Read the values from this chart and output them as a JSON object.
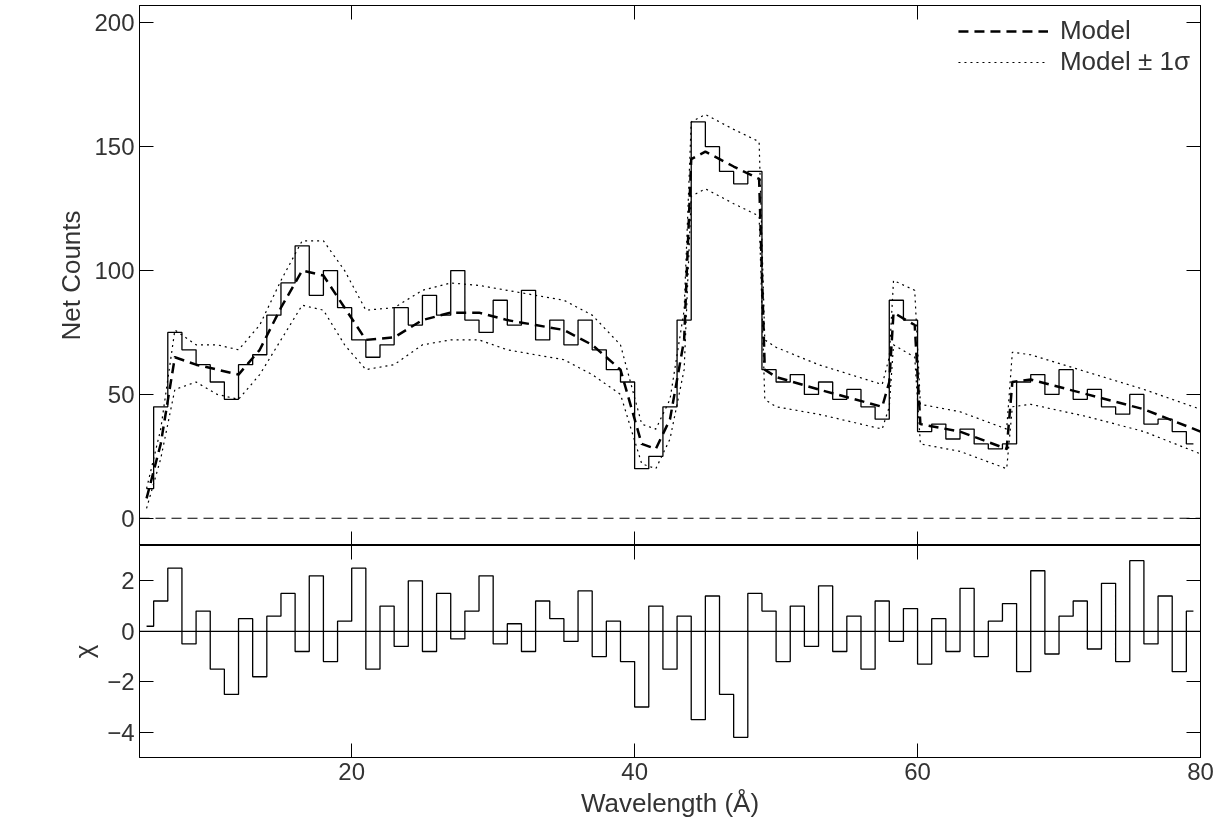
{
  "chart_data": [
    {
      "type": "step",
      "ylabel": "Net Counts",
      "xlim": [
        5,
        80
      ],
      "xticks": [
        20,
        40,
        60,
        80
      ],
      "ylim": [
        -11,
        207
      ],
      "yticks": [
        0,
        50,
        100,
        150,
        200
      ],
      "tick_labels": "y",
      "grid": false,
      "legend": "top right",
      "series": [
        {
          "color": "#000000",
          "x": [
            5.5,
            6.5,
            7.5,
            8.5,
            9.5,
            10.5,
            11.5,
            12.5,
            13.5,
            14.5,
            15.5,
            16.5,
            17.5,
            18.5,
            19.5,
            20.5,
            21.5,
            22.5,
            23.5,
            24.5,
            25.5,
            26.5,
            27.5,
            28.5,
            29.5,
            30.5,
            31.5,
            32.5,
            33.5,
            34.5,
            35.5,
            36.5,
            37.5,
            38.5,
            39.5,
            40.5,
            41.5,
            42.5,
            43.5,
            44.5,
            45.5,
            46.5,
            47.5,
            48.5,
            49.5,
            50.5,
            51.5,
            52.5,
            53.5,
            54.5,
            55.5,
            56.5,
            57.5,
            58.5,
            59.5,
            60.5,
            61.5,
            62.5,
            63.5,
            64.5,
            65.5,
            66.5,
            67.5,
            68.5,
            69.5,
            70.5,
            71.5,
            72.5,
            73.5,
            74.5,
            75.5,
            76.5,
            77.5,
            78.5,
            79.5
          ],
          "values": [
            12,
            45,
            75,
            68,
            62,
            55,
            48,
            62,
            66,
            82,
            95,
            110,
            90,
            100,
            85,
            72,
            65,
            70,
            85,
            78,
            90,
            82,
            100,
            80,
            75,
            88,
            78,
            92,
            72,
            80,
            70,
            80,
            68,
            60,
            55,
            20,
            25,
            45,
            80,
            160,
            150,
            140,
            135,
            140,
            60,
            55,
            58,
            50,
            55,
            48,
            52,
            45,
            40,
            88,
            80,
            35,
            38,
            32,
            36,
            30,
            28,
            30,
            55,
            58,
            50,
            60,
            48,
            52,
            45,
            42,
            50,
            38,
            40,
            35,
            30
          ]
        },
        {
          "type": "line",
          "name": "Model",
          "color": "#000000",
          "line_style": "dashed",
          "x": [
            5.5,
            6.5,
            7.5,
            9,
            10.5,
            12,
            13.5,
            15,
            16.5,
            18,
            19.5,
            21,
            23,
            25,
            27,
            29,
            31,
            33,
            35,
            37,
            39,
            40.5,
            41.5,
            42.5,
            43.5,
            44,
            45,
            47,
            48.8,
            49.2,
            50,
            53,
            57.5,
            58,
            58.3,
            59.8,
            60.2,
            63,
            66.3,
            66.7,
            68,
            72,
            76,
            80
          ],
          "values": [
            8,
            30,
            65,
            62,
            60,
            58,
            68,
            85,
            100,
            98,
            85,
            72,
            73,
            80,
            83,
            83,
            80,
            78,
            76,
            70,
            60,
            30,
            28,
            40,
            72,
            145,
            148,
            142,
            137,
            60,
            57,
            52,
            45,
            55,
            83,
            78,
            38,
            35,
            28,
            55,
            56,
            50,
            44,
            35
          ]
        },
        {
          "type": "line",
          "name": "Model ± 1σ",
          "color": "#000000",
          "line_style": "dotted",
          "x": [
            5.5,
            6.5,
            7.5,
            9,
            10.5,
            12,
            13.5,
            15,
            16.5,
            18,
            19.5,
            21,
            23,
            25,
            27,
            29,
            31,
            33,
            35,
            37,
            39,
            40.5,
            41.5,
            42.5,
            43.5,
            44,
            45,
            47,
            48.8,
            49.2,
            50,
            53,
            57.5,
            58,
            58.3,
            59.8,
            60.2,
            63,
            66.3,
            66.7,
            68,
            72,
            76,
            80
          ],
          "values": [
            12,
            36,
            76,
            70,
            70,
            68,
            78,
            96,
            112,
            112,
            100,
            84,
            85,
            92,
            95,
            94,
            92,
            90,
            88,
            82,
            70,
            38,
            36,
            48,
            84,
            160,
            163,
            157,
            152,
            72,
            69,
            62,
            54,
            65,
            96,
            92,
            46,
            43,
            36,
            67,
            66,
            59,
            52,
            44
          ]
        },
        {
          "type": "line",
          "color": "#000000",
          "line_style": "dotted",
          "x": [
            5.5,
            6.5,
            7.5,
            9,
            10.5,
            12,
            13.5,
            15,
            16.5,
            18,
            19.5,
            21,
            23,
            25,
            27,
            29,
            31,
            33,
            35,
            37,
            39,
            40.5,
            41.5,
            42.5,
            43.5,
            44,
            45,
            47,
            48.8,
            49.2,
            50,
            53,
            57.5,
            58,
            58.3,
            59.8,
            60.2,
            63,
            66.3,
            66.7,
            68,
            72,
            76,
            80
          ],
          "values": [
            4,
            24,
            52,
            55,
            50,
            48,
            58,
            72,
            86,
            84,
            70,
            60,
            62,
            70,
            72,
            72,
            68,
            66,
            64,
            58,
            50,
            22,
            20,
            32,
            60,
            130,
            133,
            127,
            122,
            48,
            45,
            42,
            36,
            45,
            70,
            65,
            30,
            27,
            20,
            45,
            46,
            41,
            35,
            26
          ]
        }
      ],
      "ref_lines": [
        {
          "axis": "y",
          "value": 0,
          "color": "#000000",
          "line_style": "dashed"
        }
      ]
    },
    {
      "type": "step",
      "xlabel": "Wavelength (Å)",
      "ylabel": "χ",
      "xlim": [
        5,
        80
      ],
      "xticks": [
        20,
        40,
        60,
        80
      ],
      "ylim": [
        -5,
        3.4
      ],
      "yticks": [
        {
          "value": -4,
          "label": "−4"
        },
        {
          "value": -2,
          "label": "−2"
        },
        0,
        2
      ],
      "grid": false,
      "series": [
        {
          "color": "#000000",
          "x": [
            5.5,
            6.5,
            7.5,
            8.5,
            9.5,
            10.5,
            11.5,
            12.5,
            13.5,
            14.5,
            15.5,
            16.5,
            17.5,
            18.5,
            19.5,
            20.5,
            21.5,
            22.5,
            23.5,
            24.5,
            25.5,
            26.5,
            27.5,
            28.5,
            29.5,
            30.5,
            31.5,
            32.5,
            33.5,
            34.5,
            35.5,
            36.5,
            37.5,
            38.5,
            39.5,
            40.5,
            41.5,
            42.5,
            43.5,
            44.5,
            45.5,
            46.5,
            47.5,
            48.5,
            49.5,
            50.5,
            51.5,
            52.5,
            53.5,
            54.5,
            55.5,
            56.5,
            57.5,
            58.5,
            59.5,
            60.5,
            61.5,
            62.5,
            63.5,
            64.5,
            65.5,
            66.5,
            67.5,
            68.5,
            69.5,
            70.5,
            71.5,
            72.5,
            73.5,
            74.5,
            75.5,
            76.5,
            77.5,
            78.5,
            79.5
          ],
          "values": [
            0.2,
            1.2,
            2.5,
            -0.5,
            0.8,
            -1.5,
            -2.5,
            0.5,
            -1.8,
            0.6,
            1.5,
            -0.8,
            2.2,
            -1.2,
            0.4,
            2.5,
            -1.5,
            1.0,
            -0.6,
            2.0,
            -0.8,
            1.5,
            -0.3,
            0.8,
            2.2,
            -0.5,
            0.3,
            -0.8,
            1.2,
            0.5,
            -0.4,
            1.6,
            -1.0,
            0.4,
            -1.2,
            -3.0,
            1.0,
            -1.5,
            0.6,
            -3.5,
            1.4,
            -2.5,
            -4.2,
            1.5,
            0.8,
            -1.2,
            1.0,
            -0.6,
            1.8,
            -0.8,
            0.6,
            -1.5,
            1.2,
            -0.4,
            0.9,
            -1.3,
            0.5,
            -0.8,
            1.7,
            -1.0,
            0.4,
            1.1,
            -1.6,
            2.4,
            -0.9,
            0.6,
            1.2,
            -0.7,
            1.9,
            -1.2,
            2.8,
            -0.5,
            1.4,
            -1.6,
            0.8
          ]
        }
      ],
      "ref_lines": [
        {
          "axis": "y",
          "value": 0,
          "color": "#000000",
          "line_style": "solid"
        }
      ]
    }
  ]
}
